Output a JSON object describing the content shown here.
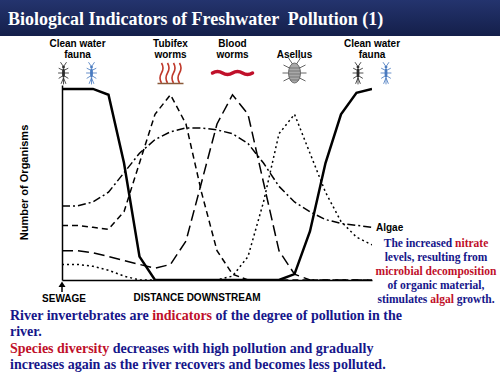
{
  "title": "Biological Indicators of Freshwater  Pollution (1)",
  "chart_data": {
    "type": "line",
    "x": [
      0,
      5,
      10,
      15,
      20,
      25,
      30,
      35,
      40,
      45,
      50,
      55,
      60,
      65,
      70,
      75,
      80,
      85,
      90,
      95,
      100
    ],
    "xlim": [
      0,
      100
    ],
    "ylim": [
      0,
      100
    ],
    "xticks": [],
    "yticks": [],
    "tick_labels": false,
    "x_label": "DISTANCE DOWNSTREAM",
    "y_label": "Number of Organisms",
    "color": "#000000",
    "series": [
      {
        "name": "Clean water fauna",
        "line_style": "solid",
        "values": [
          98,
          98,
          98,
          95,
          60,
          12,
          0,
          0,
          0,
          0,
          0,
          0,
          0,
          0,
          0,
          3,
          25,
          60,
          85,
          96,
          98
        ]
      },
      {
        "name": "Tubifex worms",
        "line_style": "dashed",
        "values": [
          28,
          28,
          27,
          26,
          35,
          60,
          85,
          95,
          80,
          45,
          15,
          3,
          0,
          0,
          0,
          0,
          0,
          0,
          0,
          0,
          0
        ]
      },
      {
        "name": "Blood worms",
        "line_style": "long_dashed",
        "values": [
          15,
          15,
          14,
          12,
          10,
          8,
          6,
          8,
          20,
          50,
          80,
          95,
          85,
          50,
          15,
          3,
          0,
          0,
          0,
          0,
          0
        ]
      },
      {
        "name": "Asellus",
        "line_style": "dotted",
        "values": [
          8,
          8,
          7,
          5,
          2,
          0,
          0,
          0,
          0,
          0,
          0,
          2,
          12,
          40,
          75,
          85,
          65,
          45,
          30,
          22,
          18
        ]
      },
      {
        "name": "Algae",
        "line_style": "dash_dot",
        "values": [
          38,
          38,
          40,
          45,
          55,
          65,
          72,
          76,
          78,
          78,
          77,
          75,
          70,
          60,
          48,
          40,
          35,
          31,
          29,
          28,
          27
        ]
      }
    ],
    "annotations": [
      {
        "text": "SEWAGE",
        "x": 0
      }
    ],
    "callout": {
      "lines": [
        "The increased nitrate",
        "levels, resulting from",
        "microbial decomposition",
        "of organic material,",
        "stimulates algal growth."
      ],
      "emphasis": [
        "nitrate",
        "microbial decomposition",
        "algal"
      ]
    }
  },
  "notes": [
    {
      "lines": [
        "River invertebrates are indicators of the degree of pollution in the",
        "river."
      ],
      "emphasis": [
        "indicators"
      ]
    },
    {
      "lines": [
        "Species diversity decreases with high pollution and gradually",
        "increases again as the river recovers and becomes less polluted."
      ],
      "emphasis": [
        "Species diversity"
      ]
    }
  ]
}
